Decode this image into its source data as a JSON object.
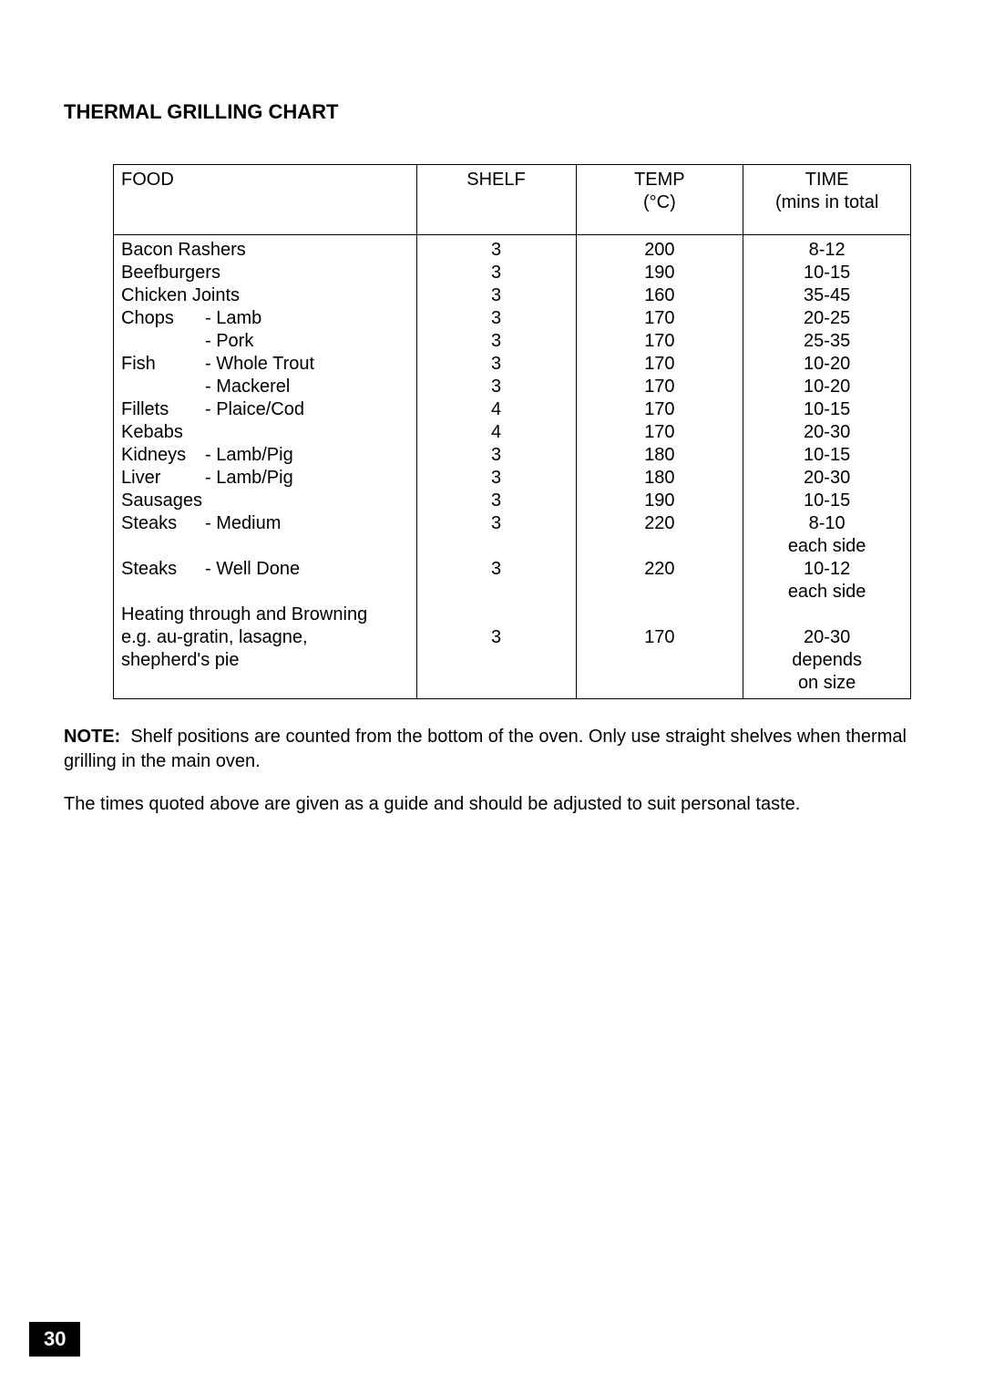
{
  "title": "THERMAL GRILLING CHART",
  "headers": {
    "food": "FOOD",
    "shelf": "SHELF",
    "temp1": "TEMP",
    "temp2": "(°C)",
    "time1": "TIME",
    "time2": "(mins in total"
  },
  "rows": [
    {
      "main": "Bacon Rashers",
      "sub": "",
      "shelf": "3",
      "temp": "200",
      "time": "8-12"
    },
    {
      "main": "Beefburgers",
      "sub": "",
      "shelf": "3",
      "temp": "190",
      "time": "10-15"
    },
    {
      "main": "Chicken Joints",
      "sub": "",
      "shelf": "3",
      "temp": "160",
      "time": "35-45"
    },
    {
      "main": "Chops",
      "sub": "- Lamb",
      "shelf": "3",
      "temp": "170",
      "time": "20-25"
    },
    {
      "main": "",
      "sub": "- Pork",
      "shelf": "3",
      "temp": "170",
      "time": "25-35"
    },
    {
      "main": "Fish",
      "sub": "- Whole Trout",
      "shelf": "3",
      "temp": "170",
      "time": "10-20"
    },
    {
      "main": "",
      "sub": "- Mackerel",
      "shelf": "3",
      "temp": "170",
      "time": "10-20"
    },
    {
      "main": "Fillets",
      "sub": "- Plaice/Cod",
      "shelf": "4",
      "temp": "170",
      "time": "10-15"
    },
    {
      "main": "Kebabs",
      "sub": "",
      "shelf": "4",
      "temp": "170",
      "time": "20-30"
    },
    {
      "main": "Kidneys",
      "sub": "- Lamb/Pig",
      "shelf": "3",
      "temp": "180",
      "time": "10-15"
    },
    {
      "main": "Liver",
      "sub": "- Lamb/Pig",
      "shelf": "3",
      "temp": "180",
      "time": "20-30"
    },
    {
      "main": "Sausages",
      "sub": "",
      "shelf": "3",
      "temp": "190",
      "time": "10-15"
    },
    {
      "main": "Steaks",
      "sub": "- Medium",
      "shelf": "3",
      "temp": "220",
      "time": "8-10"
    },
    {
      "main": "",
      "sub": "",
      "shelf": "",
      "temp": "",
      "time": "each side"
    },
    {
      "main": "Steaks",
      "sub": "- Well Done",
      "shelf": "3",
      "temp": "220",
      "time": "10-12"
    },
    {
      "main": "",
      "sub": "",
      "shelf": "",
      "temp": "",
      "time": "each side"
    },
    {
      "full": "Heating through and Browning",
      "shelf": "",
      "temp": "",
      "time": ""
    },
    {
      "full": "e.g. au-gratin, lasagne,",
      "shelf": "3",
      "temp": "170",
      "time": "20-30"
    },
    {
      "full": "shepherd's pie",
      "shelf": "",
      "temp": "",
      "time": "depends"
    },
    {
      "full": "",
      "shelf": "",
      "temp": "",
      "time": "on size"
    }
  ],
  "note_label": "NOTE:",
  "note_text": "Shelf positions are counted from the bottom of the oven. Only use straight shelves when thermal grilling in the main oven.",
  "note2": "The times quoted above are given as a guide  and should be adjusted to suit personal taste.",
  "page_number": "30"
}
